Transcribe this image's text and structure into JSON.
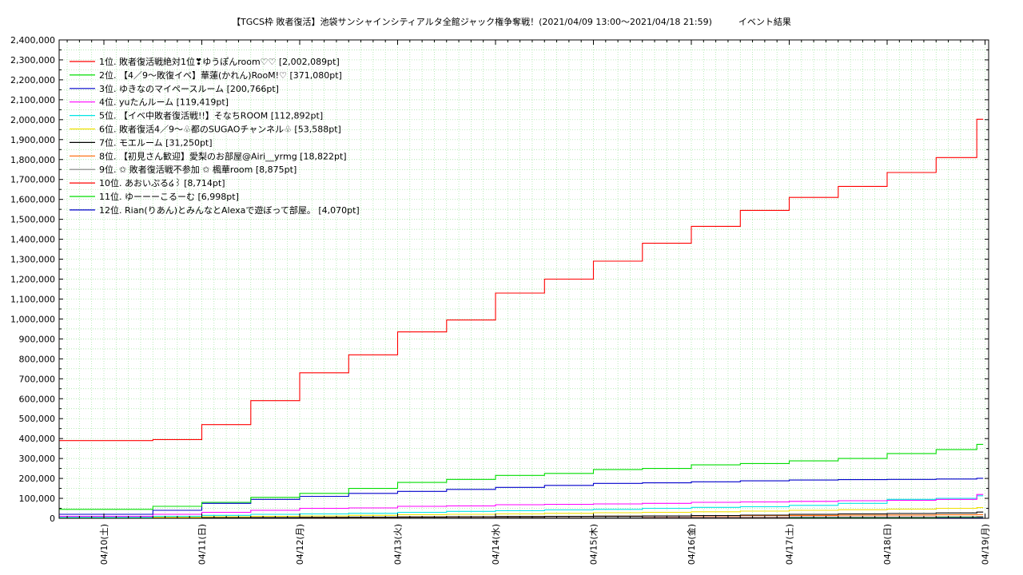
{
  "chart_data": {
    "type": "line",
    "title": "【TGCS枠 敗者復活】池袋サンシャインシティアルタ全館ジャック権争奪戦！(2021/04/09 13:00～2021/04/18 21:59)　　　イベント結果",
    "xlabel": "",
    "ylabel": "",
    "ylim": [
      0,
      2400000
    ],
    "xlim": [
      "04/09 12:00",
      "04/19 00:00"
    ],
    "y_ticks": [
      "0",
      "100,000",
      "200,000",
      "300,000",
      "400,000",
      "500,000",
      "600,000",
      "700,000",
      "800,000",
      "900,000",
      "1,000,000",
      "1,100,000",
      "1,200,000",
      "1,300,000",
      "1,400,000",
      "1,500,000",
      "1,600,000",
      "1,700,000",
      "1,800,000",
      "1,900,000",
      "2,000,000",
      "2,100,000",
      "2,200,000",
      "2,300,000",
      "2,400,000"
    ],
    "x_ticks": [
      "04/10(土)",
      "04/11(日)",
      "04/12(月)",
      "04/13(火)",
      "04/14(水)",
      "04/15(木)",
      "04/16(金)",
      "04/17(土)",
      "04/18(日)",
      "04/19(月)"
    ],
    "grid": true,
    "legend_position": "top-left",
    "series": [
      {
        "name": "1位. 敗者復活戦絶対1位❣ゆうぽんroom♡♡ [2,002,089pt]",
        "color": "#ff0000",
        "points": [
          [
            "04/09 13:00",
            390000
          ],
          [
            "04/10 12:00",
            395000
          ],
          [
            "04/11 00:00",
            470000
          ],
          [
            "04/11 12:00",
            590000
          ],
          [
            "04/12 00:00",
            730000
          ],
          [
            "04/12 12:00",
            820000
          ],
          [
            "04/13 00:00",
            935000
          ],
          [
            "04/13 12:00",
            995000
          ],
          [
            "04/14 00:00",
            1130000
          ],
          [
            "04/14 12:00",
            1200000
          ],
          [
            "04/15 00:00",
            1290000
          ],
          [
            "04/15 12:00",
            1380000
          ],
          [
            "04/16 00:00",
            1465000
          ],
          [
            "04/16 12:00",
            1545000
          ],
          [
            "04/17 00:00",
            1610000
          ],
          [
            "04/17 12:00",
            1665000
          ],
          [
            "04/18 00:00",
            1735000
          ],
          [
            "04/18 12:00",
            1810000
          ],
          [
            "04/18 21:59",
            2002089
          ]
        ]
      },
      {
        "name": "2位. 【4／9～敗復イベ】華蓮(かれん)RooM!♡ [371,080pt]",
        "color": "#00dd00",
        "points": [
          [
            "04/09 13:00",
            45000
          ],
          [
            "04/10 12:00",
            60000
          ],
          [
            "04/11 00:00",
            80000
          ],
          [
            "04/11 12:00",
            105000
          ],
          [
            "04/12 00:00",
            125000
          ],
          [
            "04/12 12:00",
            150000
          ],
          [
            "04/13 00:00",
            180000
          ],
          [
            "04/13 12:00",
            195000
          ],
          [
            "04/14 00:00",
            215000
          ],
          [
            "04/14 12:00",
            225000
          ],
          [
            "04/15 00:00",
            245000
          ],
          [
            "04/15 12:00",
            250000
          ],
          [
            "04/16 00:00",
            268000
          ],
          [
            "04/16 12:00",
            275000
          ],
          [
            "04/17 00:00",
            288000
          ],
          [
            "04/17 12:00",
            300000
          ],
          [
            "04/18 00:00",
            325000
          ],
          [
            "04/18 12:00",
            345000
          ],
          [
            "04/18 21:59",
            371080
          ]
        ]
      },
      {
        "name": "3位. ゆきなのマイペースルーム [200,766pt]",
        "color": "#0000cc",
        "points": [
          [
            "04/09 13:00",
            20000
          ],
          [
            "04/10 12:00",
            40000
          ],
          [
            "04/11 00:00",
            75000
          ],
          [
            "04/11 12:00",
            95000
          ],
          [
            "04/12 00:00",
            110000
          ],
          [
            "04/12 12:00",
            125000
          ],
          [
            "04/13 00:00",
            135000
          ],
          [
            "04/13 12:00",
            145000
          ],
          [
            "04/14 00:00",
            155000
          ],
          [
            "04/14 12:00",
            165000
          ],
          [
            "04/15 00:00",
            175000
          ],
          [
            "04/15 12:00",
            178000
          ],
          [
            "04/16 00:00",
            183000
          ],
          [
            "04/16 12:00",
            188000
          ],
          [
            "04/17 00:00",
            192000
          ],
          [
            "04/17 12:00",
            194000
          ],
          [
            "04/18 00:00",
            195000
          ],
          [
            "04/18 12:00",
            197000
          ],
          [
            "04/18 21:59",
            200766
          ]
        ]
      },
      {
        "name": "4位. yuたんルーム [119,419pt]",
        "color": "#ff00ff",
        "points": [
          [
            "04/09 13:00",
            10000
          ],
          [
            "04/10 12:00",
            20000
          ],
          [
            "04/11 00:00",
            30000
          ],
          [
            "04/11 12:00",
            40000
          ],
          [
            "04/12 00:00",
            50000
          ],
          [
            "04/12 12:00",
            52000
          ],
          [
            "04/13 00:00",
            60000
          ],
          [
            "04/13 12:00",
            62000
          ],
          [
            "04/14 00:00",
            68000
          ],
          [
            "04/14 12:00",
            70000
          ],
          [
            "04/15 00:00",
            72000
          ],
          [
            "04/15 12:00",
            75000
          ],
          [
            "04/16 00:00",
            80000
          ],
          [
            "04/16 12:00",
            82000
          ],
          [
            "04/17 00:00",
            85000
          ],
          [
            "04/17 12:00",
            88000
          ],
          [
            "04/18 00:00",
            90000
          ],
          [
            "04/18 12:00",
            95000
          ],
          [
            "04/18 21:59",
            119419
          ]
        ]
      },
      {
        "name": "5位. 【イベ中敗者復活戦!!】そなちROOM [112,892pt]",
        "color": "#00e5e5",
        "points": [
          [
            "04/09 13:00",
            5000
          ],
          [
            "04/10 12:00",
            10000
          ],
          [
            "04/11 00:00",
            15000
          ],
          [
            "04/11 12:00",
            20000
          ],
          [
            "04/12 00:00",
            22000
          ],
          [
            "04/12 12:00",
            25000
          ],
          [
            "04/13 00:00",
            30000
          ],
          [
            "04/13 12:00",
            35000
          ],
          [
            "04/14 00:00",
            38000
          ],
          [
            "04/14 12:00",
            42000
          ],
          [
            "04/15 00:00",
            45000
          ],
          [
            "04/15 12:00",
            50000
          ],
          [
            "04/16 00:00",
            55000
          ],
          [
            "04/16 12:00",
            58000
          ],
          [
            "04/17 00:00",
            65000
          ],
          [
            "04/17 12:00",
            75000
          ],
          [
            "04/18 00:00",
            95000
          ],
          [
            "04/18 12:00",
            100000
          ],
          [
            "04/18 21:59",
            112892
          ]
        ]
      },
      {
        "name": "6位. 敗者復活4／9～♧都のSUGAOチャンネル♧ [53,588pt]",
        "color": "#f0e000",
        "points": [
          [
            "04/09 13:00",
            2000
          ],
          [
            "04/10 12:00",
            5000
          ],
          [
            "04/11 00:00",
            8000
          ],
          [
            "04/11 12:00",
            10000
          ],
          [
            "04/12 00:00",
            12000
          ],
          [
            "04/12 12:00",
            15000
          ],
          [
            "04/13 00:00",
            18000
          ],
          [
            "04/13 12:00",
            20000
          ],
          [
            "04/14 00:00",
            22000
          ],
          [
            "04/14 12:00",
            25000
          ],
          [
            "04/15 00:00",
            28000
          ],
          [
            "04/15 12:00",
            30000
          ],
          [
            "04/16 00:00",
            33000
          ],
          [
            "04/16 12:00",
            36000
          ],
          [
            "04/17 00:00",
            40000
          ],
          [
            "04/17 12:00",
            43000
          ],
          [
            "04/18 00:00",
            46000
          ],
          [
            "04/18 12:00",
            50000
          ],
          [
            "04/18 21:59",
            53588
          ]
        ]
      },
      {
        "name": "7位. モエルーム [31,250pt]",
        "color": "#000000",
        "points": [
          [
            "04/09 13:00",
            1000
          ],
          [
            "04/10 12:00",
            2000
          ],
          [
            "04/11 00:00",
            3000
          ],
          [
            "04/11 12:00",
            4000
          ],
          [
            "04/12 00:00",
            5000
          ],
          [
            "04/12 12:00",
            6000
          ],
          [
            "04/13 00:00",
            7000
          ],
          [
            "04/13 12:00",
            8000
          ],
          [
            "04/14 00:00",
            9000
          ],
          [
            "04/14 12:00",
            10000
          ],
          [
            "04/15 00:00",
            11000
          ],
          [
            "04/15 12:00",
            12000
          ],
          [
            "04/16 00:00",
            14000
          ],
          [
            "04/16 12:00",
            16000
          ],
          [
            "04/17 00:00",
            20000
          ],
          [
            "04/17 12:00",
            22000
          ],
          [
            "04/18 00:00",
            24000
          ],
          [
            "04/18 12:00",
            27000
          ],
          [
            "04/18 21:59",
            31250
          ]
        ]
      },
      {
        "name": "8位. 【初見さん歓迎】愛梨のお部屋@Airi__yrmg [18,822pt]",
        "color": "#ff6600",
        "points": [
          [
            "04/09 13:00",
            500
          ],
          [
            "04/10 12:00",
            1500
          ],
          [
            "04/11 00:00",
            2500
          ],
          [
            "04/11 12:00",
            3500
          ],
          [
            "04/12 00:00",
            4500
          ],
          [
            "04/12 12:00",
            5500
          ],
          [
            "04/13 00:00",
            6500
          ],
          [
            "04/13 12:00",
            7500
          ],
          [
            "04/14 00:00",
            8500
          ],
          [
            "04/14 12:00",
            9500
          ],
          [
            "04/15 00:00",
            10500
          ],
          [
            "04/15 12:00",
            11500
          ],
          [
            "04/16 00:00",
            12500
          ],
          [
            "04/16 12:00",
            13500
          ],
          [
            "04/17 00:00",
            14500
          ],
          [
            "04/17 12:00",
            15500
          ],
          [
            "04/18 00:00",
            16500
          ],
          [
            "04/18 12:00",
            17500
          ],
          [
            "04/18 21:59",
            18822
          ]
        ]
      },
      {
        "name": "9位. ✩ 敗者復活戦不参加 ✩ 楓華room [8,875pt]",
        "color": "#808080",
        "points": [
          [
            "04/09 13:00",
            1000
          ],
          [
            "04/11 00:00",
            2000
          ],
          [
            "04/12 12:00",
            3000
          ],
          [
            "04/14 00:00",
            4000
          ],
          [
            "04/15 12:00",
            5000
          ],
          [
            "04/17 00:00",
            6500
          ],
          [
            "04/18 12:00",
            8000
          ],
          [
            "04/18 21:59",
            8875
          ]
        ]
      },
      {
        "name": "10位. あおいぷる໒꒱ [8,714pt]",
        "color": "#ff0000",
        "points": [
          [
            "04/09 13:00",
            500
          ],
          [
            "04/11 00:00",
            1500
          ],
          [
            "04/12 12:00",
            2500
          ],
          [
            "04/14 00:00",
            3500
          ],
          [
            "04/15 12:00",
            5000
          ],
          [
            "04/17 00:00",
            6500
          ],
          [
            "04/18 12:00",
            8000
          ],
          [
            "04/18 21:59",
            8714
          ]
        ]
      },
      {
        "name": "11位. ゆーーーこるーむ [6,998pt]",
        "color": "#00dd00",
        "points": [
          [
            "04/09 13:00",
            300
          ],
          [
            "04/11 00:00",
            1000
          ],
          [
            "04/12 12:00",
            2000
          ],
          [
            "04/14 00:00",
            3000
          ],
          [
            "04/15 12:00",
            4000
          ],
          [
            "04/17 00:00",
            5000
          ],
          [
            "04/18 12:00",
            6500
          ],
          [
            "04/18 21:59",
            6998
          ]
        ]
      },
      {
        "name": "12位. Rian(りあん)とみんなとAlexaで遊ぼって部屋。 [4,070pt]",
        "color": "#0000cc",
        "points": [
          [
            "04/09 13:00",
            200
          ],
          [
            "04/11 00:00",
            600
          ],
          [
            "04/12 12:00",
            1200
          ],
          [
            "04/14 00:00",
            1800
          ],
          [
            "04/15 12:00",
            2400
          ],
          [
            "04/17 00:00",
            3000
          ],
          [
            "04/18 12:00",
            3600
          ],
          [
            "04/18 21:59",
            4070
          ]
        ]
      }
    ]
  }
}
